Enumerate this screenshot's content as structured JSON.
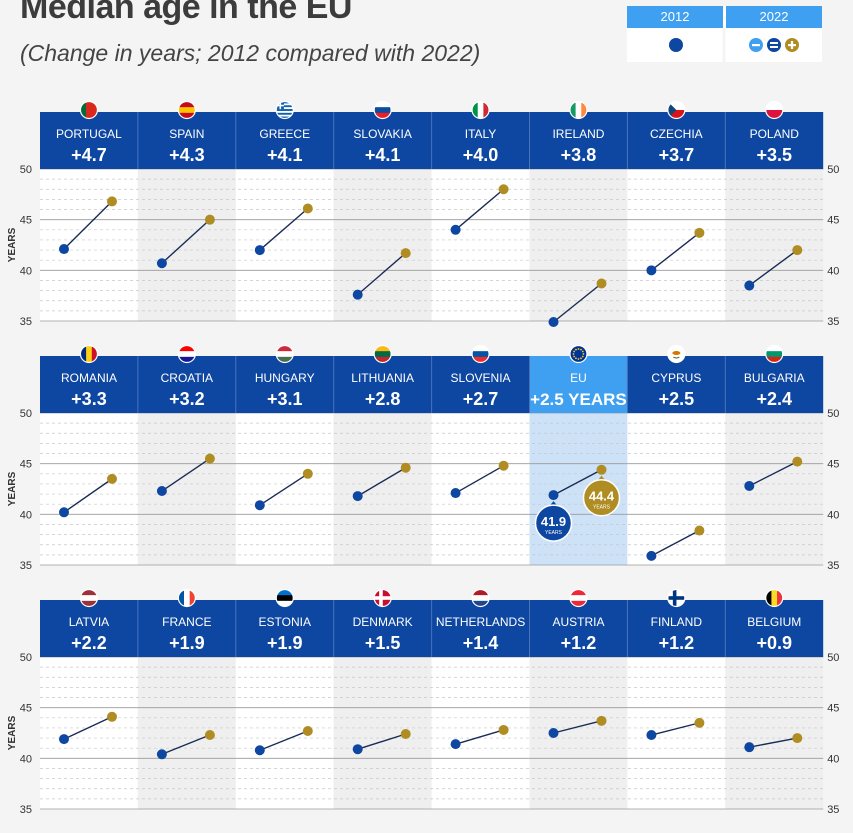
{
  "title": "Median age in the EU",
  "subtitle": "(Change in years; 2012 compared with 2022)",
  "legend": {
    "year1": "2012",
    "year2": "2022"
  },
  "colors": {
    "header": "#0e47a1",
    "eu_header": "#3fa0f2",
    "eu_band": "#cde1f7",
    "dot_2012": "#0e47a1",
    "dot_2022": "#b08d23",
    "alt_band": "#efefef"
  },
  "axis": {
    "ylabel": "YEARS",
    "ticks": [
      "50",
      "45",
      "40",
      "35"
    ]
  },
  "eu_labels": {
    "v2012": "41.9",
    "v2022": "44.4",
    "unit": "YEARS"
  },
  "chart_data": {
    "type": "scatter",
    "description_units": "years",
    "ylim": [
      35,
      50
    ],
    "yticks": [
      35,
      40,
      45,
      50
    ],
    "series_names": [
      "2012",
      "2022"
    ],
    "rows": [
      [
        {
          "name": "PORTUGAL",
          "change": "+4.7",
          "v2012": 42.1,
          "v2022": 46.8,
          "flag": "portugal"
        },
        {
          "name": "SPAIN",
          "change": "+4.3",
          "v2012": 40.7,
          "v2022": 45.0,
          "flag": "spain"
        },
        {
          "name": "GREECE",
          "change": "+4.1",
          "v2012": 42.0,
          "v2022": 46.1,
          "flag": "greece"
        },
        {
          "name": "SLOVAKIA",
          "change": "+4.1",
          "v2012": 37.6,
          "v2022": 41.7,
          "flag": "slovakia"
        },
        {
          "name": "ITALY",
          "change": "+4.0",
          "v2012": 44.0,
          "v2022": 48.0,
          "flag": "italy"
        },
        {
          "name": "IRELAND",
          "change": "+3.8",
          "v2012": 34.9,
          "v2022": 38.7,
          "flag": "ireland"
        },
        {
          "name": "CZECHIA",
          "change": "+3.7",
          "v2012": 40.0,
          "v2022": 43.7,
          "flag": "czechia"
        },
        {
          "name": "POLAND",
          "change": "+3.5",
          "v2012": 38.5,
          "v2022": 42.0,
          "flag": "poland"
        }
      ],
      [
        {
          "name": "ROMANIA",
          "change": "+3.3",
          "v2012": 40.2,
          "v2022": 43.5,
          "flag": "romania"
        },
        {
          "name": "CROATIA",
          "change": "+3.2",
          "v2012": 42.3,
          "v2022": 45.5,
          "flag": "croatia"
        },
        {
          "name": "HUNGARY",
          "change": "+3.1",
          "v2012": 40.9,
          "v2022": 44.0,
          "flag": "hungary"
        },
        {
          "name": "LITHUANIA",
          "change": "+2.8",
          "v2012": 41.8,
          "v2022": 44.6,
          "flag": "lithuania"
        },
        {
          "name": "SLOVENIA",
          "change": "+2.7",
          "v2012": 42.1,
          "v2022": 44.8,
          "flag": "slovenia"
        },
        {
          "name": "EU",
          "change": "+2.5 YEARS",
          "v2012": 41.9,
          "v2022": 44.4,
          "flag": "eu",
          "highlight": true
        },
        {
          "name": "CYPRUS",
          "change": "+2.5",
          "v2012": 35.9,
          "v2022": 38.4,
          "flag": "cyprus"
        },
        {
          "name": "BULGARIA",
          "change": "+2.4",
          "v2012": 42.8,
          "v2022": 45.2,
          "flag": "bulgaria"
        }
      ],
      [
        {
          "name": "LATVIA",
          "change": "+2.2",
          "v2012": 41.9,
          "v2022": 44.1,
          "flag": "latvia"
        },
        {
          "name": "FRANCE",
          "change": "+1.9",
          "v2012": 40.4,
          "v2022": 42.3,
          "flag": "france"
        },
        {
          "name": "ESTONIA",
          "change": "+1.9",
          "v2012": 40.8,
          "v2022": 42.7,
          "flag": "estonia"
        },
        {
          "name": "DENMARK",
          "change": "+1.5",
          "v2012": 40.9,
          "v2022": 42.4,
          "flag": "denmark"
        },
        {
          "name": "NETHERLANDS",
          "change": "+1.4",
          "v2012": 41.4,
          "v2022": 42.8,
          "flag": "netherlands"
        },
        {
          "name": "AUSTRIA",
          "change": "+1.2",
          "v2012": 42.5,
          "v2022": 43.7,
          "flag": "austria"
        },
        {
          "name": "FINLAND",
          "change": "+1.2",
          "v2012": 42.3,
          "v2022": 43.5,
          "flag": "finland"
        },
        {
          "name": "BELGIUM",
          "change": "+0.9",
          "v2012": 41.1,
          "v2022": 42.0,
          "flag": "belgium"
        }
      ]
    ]
  }
}
